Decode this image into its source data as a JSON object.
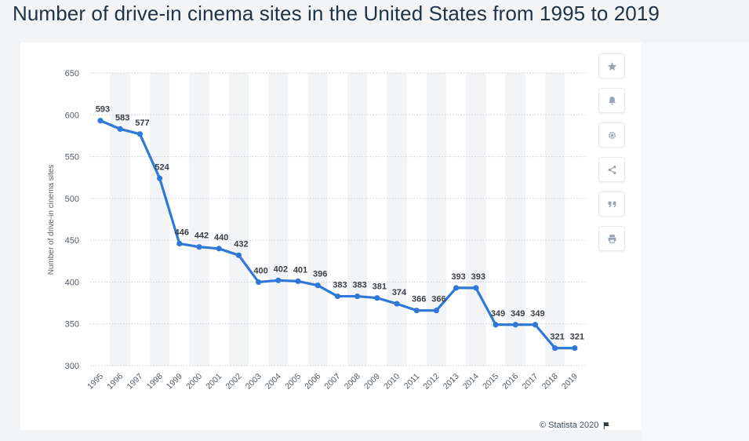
{
  "page": {
    "title": "Number of drive-in cinema sites in the United States from 1995 to 2019",
    "credit": "© Statista 2020"
  },
  "toolbar": {
    "buttons": [
      "star-icon",
      "bell-icon",
      "gear-icon",
      "share-icon",
      "quote-icon",
      "print-icon"
    ]
  },
  "colors": {
    "line": "#2f78d8",
    "band": "#f3f4f6",
    "grid": "#c9ccd1"
  },
  "chart_data": {
    "type": "line",
    "title": "Number of drive-in cinema sites in the United States from 1995 to 2019",
    "xlabel": "",
    "ylabel": "Number of drive-in cinema sites",
    "ylim": [
      300,
      650
    ],
    "yticks": [
      300,
      350,
      400,
      450,
      500,
      550,
      600,
      650
    ],
    "grid": true,
    "categories": [
      "1995",
      "1996",
      "1997",
      "1998",
      "1999",
      "2000",
      "2001",
      "2002",
      "2003",
      "2004",
      "2005",
      "2006",
      "2007",
      "2008",
      "2009",
      "2010",
      "2011",
      "2012",
      "2013",
      "2014",
      "2015",
      "2016",
      "2017",
      "2018",
      "2019"
    ],
    "series": [
      {
        "values": [
          593,
          583,
          577,
          524,
          446,
          442,
          440,
          432,
          400,
          402,
          401,
          396,
          383,
          383,
          381,
          374,
          366,
          366,
          393,
          393,
          349,
          349,
          349,
          321,
          321
        ]
      }
    ]
  }
}
